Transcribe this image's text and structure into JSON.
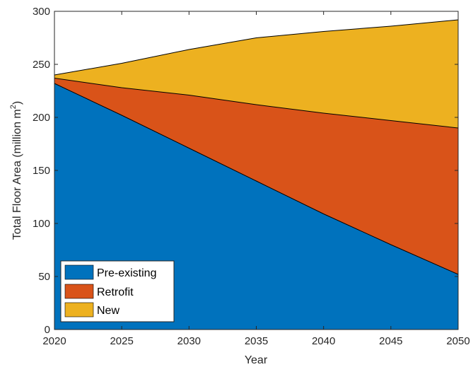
{
  "chart_data": {
    "type": "area",
    "stacked": true,
    "x": [
      2020,
      2025,
      2030,
      2035,
      2040,
      2045,
      2050
    ],
    "series": [
      {
        "name": "Pre-existing",
        "color": "#0072BD",
        "values": [
          232,
          202,
          171,
          140,
          109,
          80,
          52
        ]
      },
      {
        "name": "Retrofit",
        "color": "#D95319",
        "values": [
          5,
          26,
          50,
          72,
          95,
          117,
          138
        ]
      },
      {
        "name": "New",
        "color": "#EDB120",
        "values": [
          3,
          23,
          43,
          63,
          77,
          89,
          102
        ]
      }
    ],
    "xlabel": "Year",
    "ylabel_text": "Total Floor Area (million  m",
    "ylabel_superscript": "2",
    "ylabel_close": ")",
    "xlim": [
      2020,
      2050
    ],
    "ylim": [
      0,
      300
    ],
    "xticks": [
      "2020",
      "2025",
      "2030",
      "2035",
      "2040",
      "2045",
      "2050"
    ],
    "yticks": [
      "0",
      "50",
      "100",
      "150",
      "200",
      "250",
      "300"
    ],
    "grid": false,
    "legend_position": "bottom-left"
  }
}
